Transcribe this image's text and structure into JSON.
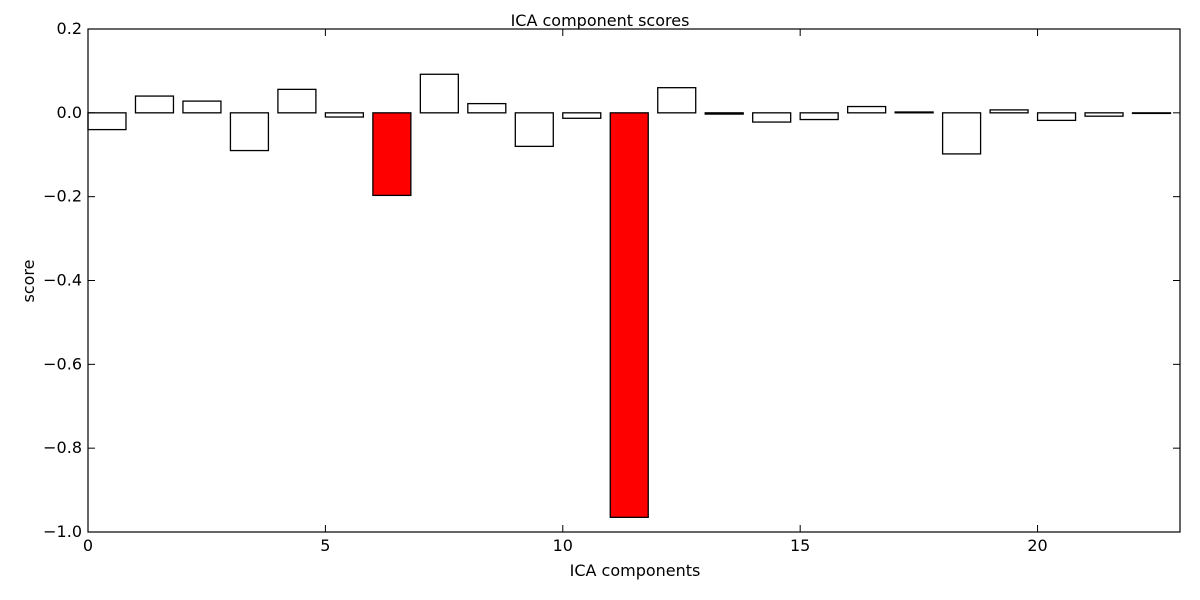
{
  "chart_data": {
    "type": "bar",
    "title": "ICA component scores",
    "xlabel": "ICA components",
    "ylabel": "score",
    "xlim": [
      0,
      23
    ],
    "ylim": [
      -1.0,
      0.2
    ],
    "x_ticks": [
      0,
      5,
      10,
      15,
      20
    ],
    "x_tick_labels": [
      "0",
      "5",
      "10",
      "15",
      "20"
    ],
    "y_ticks": [
      0.2,
      0.0,
      -0.2,
      -0.4,
      -0.6,
      -0.8,
      -1.0
    ],
    "y_tick_labels": [
      "0.2",
      "0.0",
      "−0.2",
      "−0.4",
      "−0.6",
      "−0.8",
      "−1.0"
    ],
    "grid": false,
    "x": [
      0,
      1,
      2,
      3,
      4,
      5,
      6,
      7,
      8,
      9,
      10,
      11,
      12,
      13,
      14,
      15,
      16,
      17,
      18,
      19,
      20,
      21,
      22
    ],
    "values": [
      -0.04,
      0.04,
      0.028,
      -0.09,
      0.056,
      -0.01,
      -0.197,
      0.092,
      0.022,
      -0.08,
      -0.013,
      -0.965,
      0.06,
      -0.003,
      -0.022,
      -0.016,
      0.015,
      0.002,
      -0.098,
      0.007,
      -0.018,
      -0.008,
      -0.001
    ],
    "highlighted": [
      6,
      11
    ],
    "colors": {
      "default": "#ffffff",
      "highlight": "#ff0000",
      "edge": "#000000"
    }
  }
}
